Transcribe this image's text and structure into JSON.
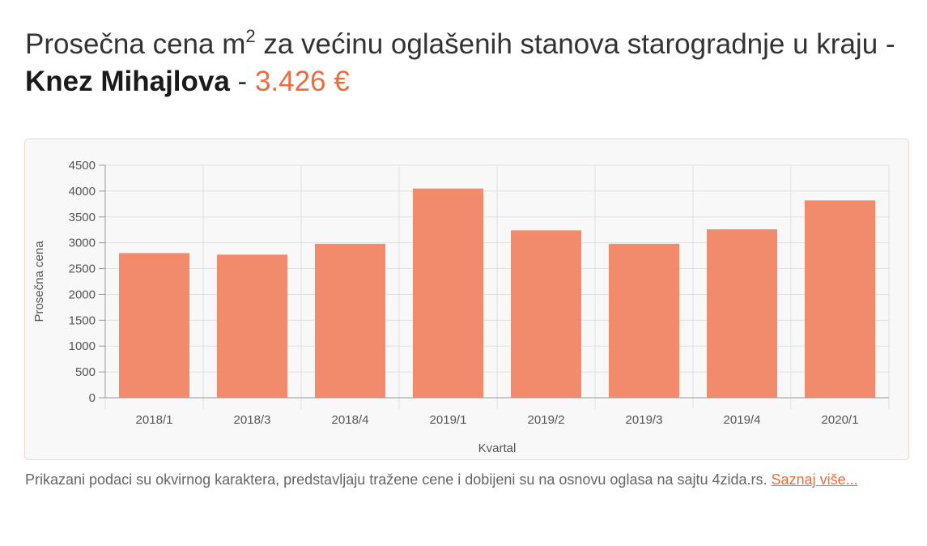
{
  "heading": {
    "prefix": "Prosečna cena m",
    "superscript": "2",
    "middle": " za većinu oglašenih stanova starogradnje u kraju - ",
    "place": "Knez Mihajlova",
    "separator": " - ",
    "price": "3.426 €"
  },
  "footnote": {
    "text": "Prikazani podaci su okvirnog karaktera, predstavljaju tražene cene i dobijeni su na osnovu oglasa na sajtu 4zida.rs. ",
    "link_label": "Saznaj više..."
  },
  "colors": {
    "accent": "#ec6c3f",
    "bar": "#f28b6c",
    "grid": "#e0e0e0",
    "axis": "#999999"
  },
  "chart_data": {
    "type": "bar",
    "categories": [
      "2018/1",
      "2018/3",
      "2018/4",
      "2019/1",
      "2019/2",
      "2019/3",
      "2019/4",
      "2020/1"
    ],
    "values": [
      2800,
      2770,
      2980,
      4050,
      3240,
      2980,
      3260,
      3820
    ],
    "xlabel": "Kvartal",
    "ylabel": "Prosečna cena",
    "ylim": [
      0,
      4500
    ],
    "yticks": [
      0,
      500,
      1000,
      1500,
      2000,
      2500,
      3000,
      3500,
      4000,
      4500
    ],
    "grid": true,
    "legend": "none"
  }
}
